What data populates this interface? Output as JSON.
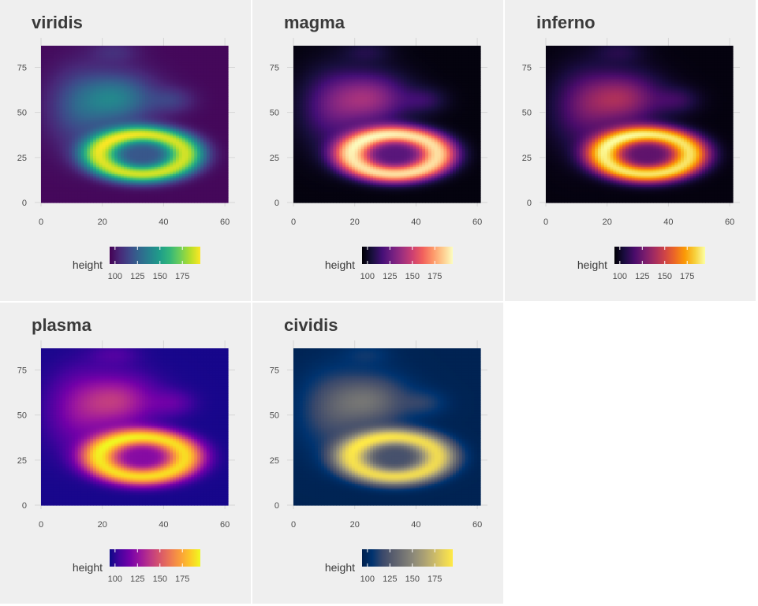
{
  "chart_data": [
    {
      "type": "heatmap",
      "title": "viridis",
      "palette": "viridis",
      "x_ticks": [
        "0",
        "20",
        "40",
        "60"
      ],
      "y_ticks": [
        "0",
        "25",
        "50",
        "75"
      ],
      "xlim": [
        0,
        61
      ],
      "ylim": [
        0,
        87
      ],
      "legend": {
        "title": "height",
        "ticks": [
          "100",
          "125",
          "150",
          "175"
        ],
        "range": [
          94,
          195
        ]
      }
    },
    {
      "type": "heatmap",
      "title": "magma",
      "palette": "magma",
      "x_ticks": [
        "0",
        "20",
        "40",
        "60"
      ],
      "y_ticks": [
        "0",
        "25",
        "50",
        "75"
      ],
      "xlim": [
        0,
        61
      ],
      "ylim": [
        0,
        87
      ],
      "legend": {
        "title": "height",
        "ticks": [
          "100",
          "125",
          "150",
          "175"
        ],
        "range": [
          94,
          195
        ]
      }
    },
    {
      "type": "heatmap",
      "title": "inferno",
      "palette": "inferno",
      "x_ticks": [
        "0",
        "20",
        "40",
        "60"
      ],
      "y_ticks": [
        "0",
        "25",
        "50",
        "75"
      ],
      "xlim": [
        0,
        61
      ],
      "ylim": [
        0,
        87
      ],
      "legend": {
        "title": "height",
        "ticks": [
          "100",
          "125",
          "150",
          "175"
        ],
        "range": [
          94,
          195
        ]
      }
    },
    {
      "type": "heatmap",
      "title": "plasma",
      "palette": "plasma",
      "x_ticks": [
        "0",
        "20",
        "40",
        "60"
      ],
      "y_ticks": [
        "0",
        "25",
        "50",
        "75"
      ],
      "xlim": [
        0,
        61
      ],
      "ylim": [
        0,
        87
      ],
      "legend": {
        "title": "height",
        "ticks": [
          "100",
          "125",
          "150",
          "175"
        ],
        "range": [
          94,
          195
        ]
      }
    },
    {
      "type": "heatmap",
      "title": "cividis",
      "palette": "cividis",
      "x_ticks": [
        "0",
        "20",
        "40",
        "60"
      ],
      "y_ticks": [
        "0",
        "25",
        "50",
        "75"
      ],
      "xlim": [
        0,
        61
      ],
      "ylim": [
        0,
        87
      ],
      "legend": {
        "title": "height",
        "ticks": [
          "100",
          "125",
          "150",
          "175"
        ],
        "range": [
          94,
          195
        ]
      }
    }
  ],
  "palettes": {
    "viridis": [
      "#440154",
      "#482878",
      "#3e4989",
      "#31688e",
      "#26828e",
      "#1f9e89",
      "#35b779",
      "#6ece58",
      "#b5de2b",
      "#fde725"
    ],
    "magma": [
      "#000004",
      "#180f3d",
      "#440f76",
      "#721f81",
      "#9e2f7f",
      "#cd4071",
      "#f1605d",
      "#fd9668",
      "#feca8d",
      "#fcfdbf"
    ],
    "inferno": [
      "#000004",
      "#1b0c41",
      "#4a0c6b",
      "#781c6d",
      "#a52c60",
      "#cf4446",
      "#ed6925",
      "#fb9b06",
      "#f7d13d",
      "#fcffa4"
    ],
    "plasma": [
      "#0d0887",
      "#47039f",
      "#7301a8",
      "#9c179e",
      "#bd3786",
      "#d8576b",
      "#ed7953",
      "#fa9e3b",
      "#fdc926",
      "#f0f921"
    ],
    "cividis": [
      "#00204d",
      "#00336f",
      "#39486b",
      "#575c6d",
      "#707173",
      "#8a8779",
      "#a69d75",
      "#c4b56c",
      "#e4cf5b",
      "#ffea46"
    ]
  }
}
